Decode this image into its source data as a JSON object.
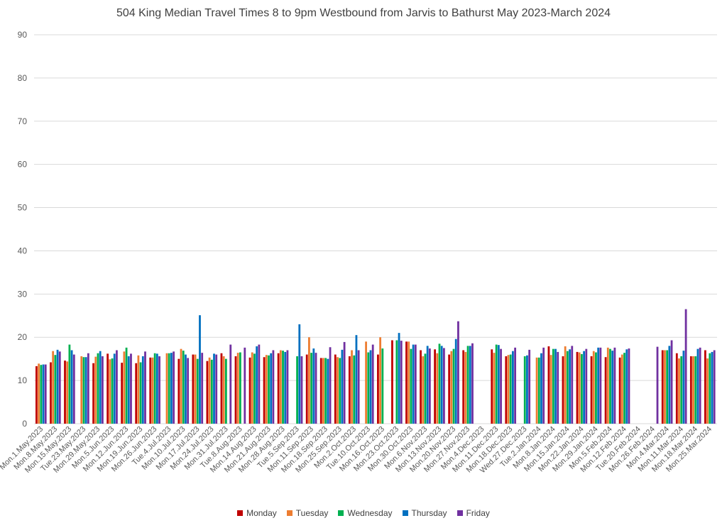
{
  "chart_data": {
    "type": "bar",
    "title": "504 King Median Travel Times 8 to 9pm Westbound from Jarvis to Bathurst May 2023-March 2024",
    "xlabel": "",
    "ylabel": "",
    "ylim": [
      0,
      90
    ],
    "yticks": [
      0,
      10,
      20,
      30,
      40,
      50,
      60,
      70,
      80,
      90
    ],
    "grid": true,
    "legend": "bottom",
    "colors": [
      "#C00000",
      "#ED7D31",
      "#00B050",
      "#0070C0",
      "#7030A0"
    ],
    "categories": [
      "Mon.1.May.2023",
      "Mon.8.May.2023",
      "Mon.15.May.2023",
      "Tue.23.May.2023",
      "Mon.29.May.2023",
      "Mon.5.Jun.2023",
      "Mon.12.Jun.2023",
      "Mon.19.Jun.2023",
      "Mon.26.Jun.2023",
      "Tue.4.Jul.2023",
      "Mon.10.Jul.2023",
      "Mon.17.Jul.2023",
      "Mon.24.Jul.2023",
      "Mon.31.Jul.2023",
      "Tue.8.Aug.2023",
      "Mon.14.Aug.2023",
      "Mon.21.Aug.2023",
      "Mon.28.Aug.2023",
      "Tue.5.Sep.2023",
      "Mon.11.Sep.2023",
      "Mon.18.Sep.2023",
      "Mon.25.Sep.2023",
      "Mon.2.Oct.2023",
      "Tue.10.Oct.2023",
      "Mon.16.Oct.2023",
      "Mon.23.Oct.2023",
      "Mon.30.Oct.2023",
      "Mon.6.Nov.2023",
      "Mon.13.Nov.2023",
      "Mon.20.Nov.2023",
      "Mon.27.Nov.2023",
      "Mon.4.Dec.2023",
      "Mon.11.Dec.2023",
      "Mon.18.Dec.2023",
      "Wed.27.Dec.2023",
      "Tue.2.Jan.2024",
      "Mon.8.Jan.2024",
      "Mon.15.Jan.2024",
      "Mon.22.Jan.2024",
      "Mon.29.Jan.2024",
      "Mon.5.Feb.2024",
      "Mon.12.Feb.2024",
      "Tue.20.Feb.2024",
      "Mon.26.Feb.2024",
      "Mon.4.Mar.2024",
      "Mon.11.Mar.2024",
      "Mon.18.Mar.2024",
      "Mon.25.Mar.2024"
    ],
    "series": [
      {
        "name": "Monday",
        "values": [
          13.3,
          14.2,
          14.6,
          null,
          14.0,
          16.2,
          14.1,
          14.0,
          15.3,
          null,
          15.0,
          16.0,
          14.5,
          16.3,
          15.6,
          15.3,
          15.4,
          16.3,
          null,
          16.0,
          15.2,
          16.0,
          15.6,
          null,
          16.0,
          19.3,
          19.0,
          17.0,
          17.2,
          16.0,
          17.0,
          null,
          17.2,
          15.6,
          null,
          null,
          17.9,
          15.6,
          16.6,
          15.6,
          15.4,
          15.3,
          null,
          null,
          17.0,
          16.3,
          15.6,
          17.0
        ]
      },
      {
        "name": "Tuesday",
        "values": [
          13.9,
          16.8,
          14.4,
          15.6,
          15.5,
          14.9,
          16.7,
          15.8,
          15.3,
          16.3,
          17.3,
          16.0,
          15.3,
          15.6,
          16.4,
          16.5,
          15.9,
          17.0,
          null,
          20.0,
          15.2,
          15.4,
          17.0,
          19.0,
          20.0,
          null,
          19.0,
          15.6,
          16.3,
          16.8,
          16.6,
          null,
          16.4,
          15.9,
          null,
          15.3,
          15.9,
          17.9,
          16.5,
          16.8,
          17.6,
          16.0,
          null,
          null,
          17.0,
          15.1,
          15.6,
          15.1
        ]
      },
      {
        "name": "Wednesday",
        "values": [
          13.6,
          15.9,
          18.3,
          15.4,
          16.3,
          15.1,
          17.6,
          14.2,
          16.3,
          16.3,
          16.9,
          15.0,
          14.8,
          15.0,
          16.5,
          16.2,
          15.8,
          16.9,
          15.6,
          16.4,
          15.2,
          15.2,
          15.8,
          16.5,
          17.4,
          19.3,
          17.3,
          16.2,
          18.5,
          17.3,
          18.0,
          null,
          18.3,
          16.0,
          15.6,
          15.3,
          17.3,
          16.8,
          16.1,
          16.5,
          17.3,
          16.4,
          null,
          null,
          17.0,
          15.6,
          15.6,
          16.3
        ]
      },
      {
        "name": "Thursday",
        "values": [
          13.7,
          17.1,
          17.0,
          15.4,
          16.8,
          16.2,
          15.6,
          15.6,
          16.2,
          16.4,
          16.0,
          25.1,
          16.2,
          null,
          null,
          17.9,
          16.3,
          16.6,
          23.0,
          17.4,
          15.0,
          17.1,
          20.5,
          17.0,
          null,
          21.0,
          18.3,
          18.0,
          18.0,
          19.6,
          18.0,
          null,
          18.2,
          16.8,
          15.8,
          16.3,
          17.3,
          17.2,
          16.8,
          17.6,
          16.9,
          17.2,
          null,
          null,
          18.0,
          16.9,
          17.3,
          16.6
        ]
      },
      {
        "name": "Friday",
        "values": [
          13.7,
          16.7,
          16.0,
          16.3,
          15.6,
          17.0,
          16.2,
          16.7,
          15.6,
          16.7,
          15.2,
          16.4,
          16.0,
          18.3,
          17.6,
          18.3,
          17.0,
          17.0,
          15.6,
          16.4,
          17.7,
          18.9,
          17.0,
          18.3,
          null,
          19.2,
          18.3,
          17.4,
          17.5,
          23.7,
          18.6,
          null,
          17.3,
          17.6,
          17.1,
          17.6,
          16.6,
          18.0,
          17.3,
          17.6,
          17.6,
          17.4,
          null,
          17.8,
          19.3,
          26.5,
          17.6,
          17.0
        ]
      }
    ]
  }
}
